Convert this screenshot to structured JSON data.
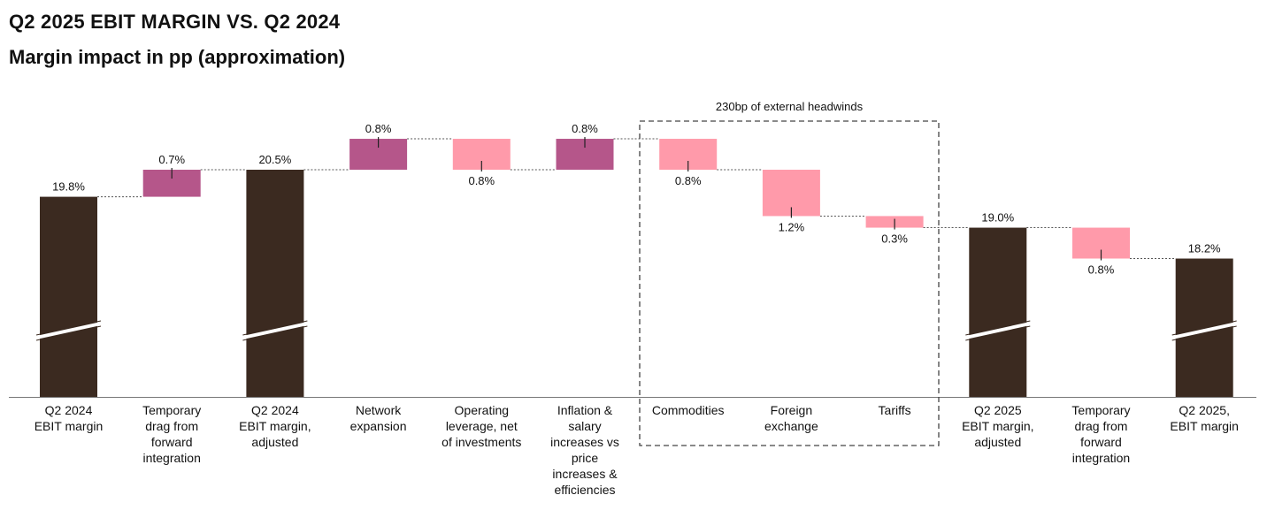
{
  "title": "Q2 2025 EBIT MARGIN VS. Q2 2024",
  "subtitle": "Margin impact in pp (approximation)",
  "colors": {
    "total": "#3b2a20",
    "increase": "#b5568a",
    "decrease": "#ff9aaa"
  },
  "chart_data": {
    "type": "waterfall",
    "unit": "%",
    "annotation": "230bp of external headwinds",
    "annotation_covers": [
      "Commodities",
      "Foreign exchange",
      "Tariffs"
    ],
    "bars": [
      {
        "category": "Q2 2024\nEBIT margin",
        "kind": "total",
        "value": 19.8,
        "label": "19.8%"
      },
      {
        "category": "Temporary\ndrag from\nforward\nintegration",
        "kind": "increase",
        "value": 0.7,
        "label": "0.7%"
      },
      {
        "category": "Q2 2024\nEBIT margin,\nadjusted",
        "kind": "total",
        "value": 20.5,
        "label": "20.5%"
      },
      {
        "category": "Network\nexpansion",
        "kind": "increase",
        "value": 0.8,
        "label": "0.8%"
      },
      {
        "category": "Operating\nleverage, net\nof investments",
        "kind": "decrease",
        "value": 0.8,
        "label": "0.8%"
      },
      {
        "category": "Inflation &\nsalary\nincreases vs\nprice\nincreases &\nefficiencies",
        "kind": "increase",
        "value": 0.8,
        "label": "0.8%"
      },
      {
        "category": "Commodities",
        "kind": "decrease",
        "value": 0.8,
        "label": "0.8%"
      },
      {
        "category": "Foreign\nexchange",
        "kind": "decrease",
        "value": 1.2,
        "label": "1.2%"
      },
      {
        "category": "Tariffs",
        "kind": "decrease",
        "value": 0.3,
        "label": "0.3%"
      },
      {
        "category": "Q2 2025\nEBIT margin,\nadjusted",
        "kind": "total",
        "value": 19.0,
        "label": "19.0%"
      },
      {
        "category": "Temporary\ndrag from\nforward\nintegration",
        "kind": "decrease",
        "value": 0.8,
        "label": "0.8%"
      },
      {
        "category": "Q2 2025,\nEBIT margin",
        "kind": "total",
        "value": 18.2,
        "label": "18.2%"
      }
    ]
  }
}
